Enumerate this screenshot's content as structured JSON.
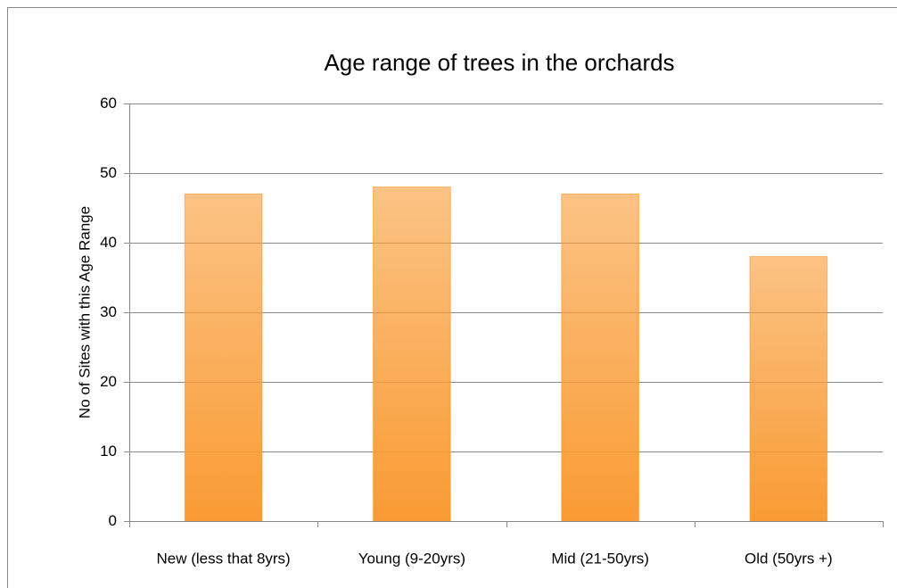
{
  "chart_data": {
    "type": "bar",
    "title": "Age range of trees in the orchards",
    "y_label": "No of Sites with this Age Range",
    "categories": [
      "New (less that 8yrs)",
      "Young (9-20yrs)",
      "Mid (21-50yrs)",
      "Old (50yrs +)"
    ],
    "values": [
      47,
      48,
      47,
      38
    ],
    "color": "#f99b33",
    "ylim": [
      0,
      60
    ],
    "yticks": [
      0,
      10,
      20,
      30,
      40,
      50,
      60
    ],
    "grid": true
  }
}
